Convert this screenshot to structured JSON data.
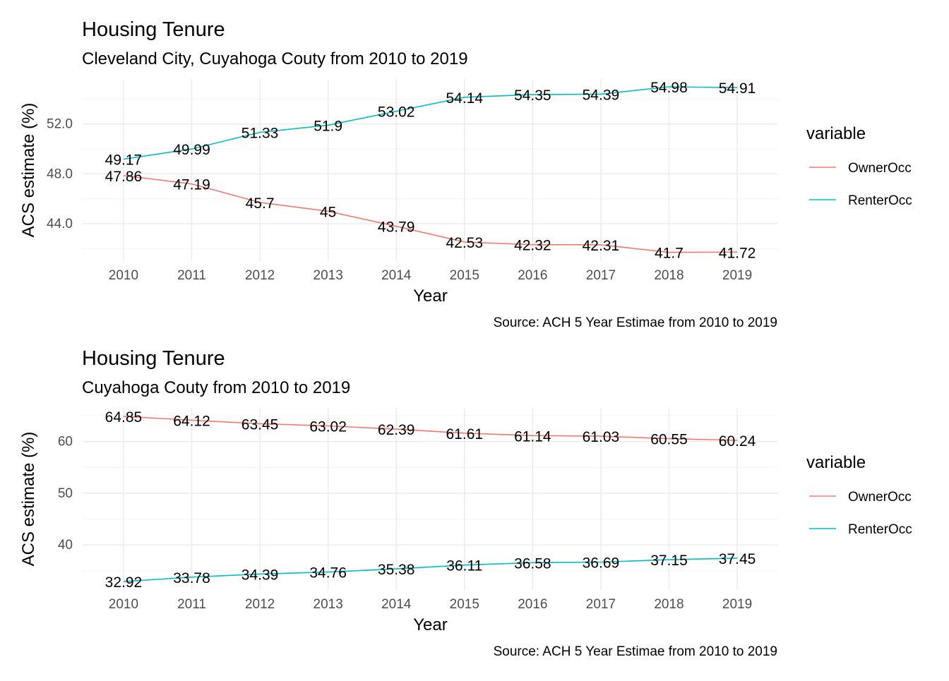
{
  "chart_data": [
    {
      "type": "line",
      "title": "Housing Tenure",
      "subtitle": "Cleveland City, Cuyahoga Couty from 2010 to 2019",
      "xlabel": "Year",
      "ylabel": "ACS estimate (%)",
      "caption": "Source: ACH 5 Year Estimae from 2010 to 2019",
      "x": [
        "2010",
        "2011",
        "2012",
        "2013",
        "2014",
        "2015",
        "2016",
        "2017",
        "2018",
        "2019"
      ],
      "ylim": [
        41.0,
        55.6
      ],
      "yticks": [
        44.0,
        48.0,
        52.0
      ],
      "ytick_labels": [
        "44.0",
        "48.0",
        "52.0"
      ],
      "grid": true,
      "legend": {
        "title": "variable",
        "position": "right"
      },
      "series": [
        {
          "name": "OwnerOcc",
          "color": "#F8766D",
          "values": [
            47.86,
            47.19,
            45.7,
            45,
            43.79,
            42.53,
            42.32,
            42.31,
            41.7,
            41.72
          ],
          "labels": [
            "47.86",
            "47.19",
            "45.7",
            "45",
            "43.79",
            "42.53",
            "42.32",
            "42.31",
            "41.7",
            "41.72"
          ]
        },
        {
          "name": "RenterOcc",
          "color": "#00BFC4",
          "values": [
            49.17,
            49.99,
            51.33,
            51.9,
            53.02,
            54.14,
            54.35,
            54.39,
            54.98,
            54.91
          ],
          "labels": [
            "49.17",
            "49.99",
            "51.33",
            "51.9",
            "53.02",
            "54.14",
            "54.35",
            "54.39",
            "54.98",
            "54.91"
          ]
        }
      ]
    },
    {
      "type": "line",
      "title": "Housing Tenure",
      "subtitle": "Cuyahoga Couty from 2010 to 2019",
      "xlabel": "Year",
      "ylabel": "ACS estimate (%)",
      "caption": "Source: ACH 5 Year Estimae from 2010 to 2019",
      "x": [
        "2010",
        "2011",
        "2012",
        "2013",
        "2014",
        "2015",
        "2016",
        "2017",
        "2018",
        "2019"
      ],
      "ylim": [
        31.3,
        66.5
      ],
      "yticks": [
        40,
        50,
        60
      ],
      "ytick_labels": [
        "40",
        "50",
        "60"
      ],
      "grid": true,
      "legend": {
        "title": "variable",
        "position": "right"
      },
      "series": [
        {
          "name": "OwnerOcc",
          "color": "#F8766D",
          "values": [
            64.85,
            64.12,
            63.45,
            63.02,
            62.39,
            61.61,
            61.14,
            61.03,
            60.55,
            60.24
          ],
          "labels": [
            "64.85",
            "64.12",
            "63.45",
            "63.02",
            "62.39",
            "61.61",
            "61.14",
            "61.03",
            "60.55",
            "60.24"
          ]
        },
        {
          "name": "RenterOcc",
          "color": "#00BFC4",
          "values": [
            32.92,
            33.78,
            34.39,
            34.76,
            35.38,
            36.11,
            36.58,
            36.69,
            37.15,
            37.45
          ],
          "labels": [
            "32.92",
            "33.78",
            "34.39",
            "34.76",
            "35.38",
            "36.11",
            "36.58",
            "36.69",
            "37.15",
            "37.45"
          ]
        }
      ]
    }
  ]
}
